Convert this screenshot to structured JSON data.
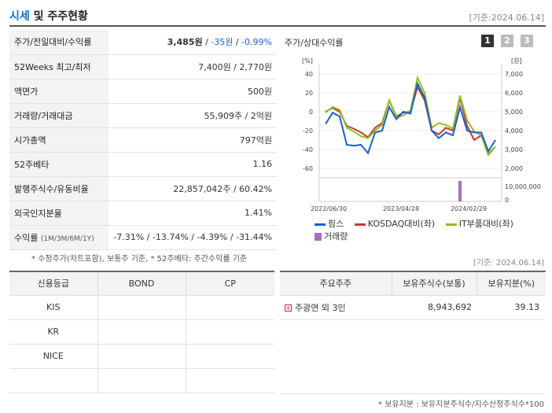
{
  "header": {
    "title_accent": "시세",
    "title_rest": " 및 주주현황",
    "asof": "[기준:2024.06.14]"
  },
  "info": {
    "price_label": "주가/전일대비/수익률",
    "price": "3,485원",
    "sep1": " / ",
    "change": "-35원",
    "sep2": " / ",
    "rate": "-0.99%",
    "w52_label": "52Weeks 최고/최저",
    "w52": "7,400원 / 2,770원",
    "par_label": "액면가",
    "par": "500원",
    "volume_label": "거래량/거래대금",
    "volume": "55,909주 / 2억원",
    "mcap_label": "시가총액",
    "mcap": "797억원",
    "beta_label": "52주베타",
    "beta": "1.16",
    "shares_label": "발행주식수/유동비율",
    "shares": "22,857,042주 / 60.42%",
    "foreign_label": "외국인지분율",
    "foreign": "1.41%",
    "ret_label": "수익률",
    "ret_label_small": "(1M/3M/6M/1Y)",
    "ret": "-7.31% / -13.74% / -4.39% / -31.44%"
  },
  "note1": "* 수정주가(차트포함), 보통주 기준, * 52주베타: 주간수익률 기준",
  "chart": {
    "title": "주가/상대수익률",
    "pages": [
      "1",
      "2",
      "3"
    ],
    "legend": [
      "핌스",
      "KOSDAQ대비(좌)",
      "IT부품대비(좌)",
      "거래량"
    ],
    "colors": {
      "price": "#1a5fd0",
      "kosdaq": "#c83a2a",
      "it": "#8fbf1f",
      "volume": "#a070d0"
    }
  },
  "chart_data": {
    "type": "line",
    "x_ticks": [
      "2022/06/30",
      "2023/04/28",
      "2024/02/29"
    ],
    "left_axis": {
      "label": "[%]",
      "ticks": [
        "40",
        "20",
        "0",
        "-20",
        "-40",
        "-60"
      ],
      "range": [
        -60,
        40
      ]
    },
    "right_axis": {
      "label": "[원]",
      "ticks": [
        "7,000",
        "6,000",
        "5,000",
        "4,000",
        "3,000",
        "2,000"
      ],
      "range": [
        2000,
        7000
      ],
      "volume_ticks": [
        "10,000,000",
        "0"
      ]
    },
    "series": [
      {
        "name": "핌스",
        "values": [
          -13,
          -1,
          -5,
          -35,
          -36,
          -35,
          -44,
          -22,
          -20,
          5,
          -8,
          0,
          -2,
          30,
          15,
          -20,
          -28,
          -22,
          -25,
          5,
          -20,
          -22,
          -22,
          -42,
          -30
        ]
      },
      {
        "name": "KOSDAQ대비(좌)",
        "values": [
          0,
          4,
          0,
          -15,
          -18,
          -22,
          -27,
          -17,
          -12,
          12,
          -5,
          -1,
          0,
          26,
          12,
          -20,
          -24,
          -17,
          -20,
          15,
          -15,
          -30,
          -25,
          -45,
          -37
        ]
      },
      {
        "name": "IT부품대비(좌)",
        "values": [
          -1,
          5,
          2,
          -17,
          -21,
          -26,
          -28,
          -20,
          -14,
          12,
          -6,
          -4,
          1,
          36,
          20,
          -17,
          -12,
          -14,
          -18,
          17,
          -9,
          -21,
          -25,
          -46,
          -37
        ]
      }
    ],
    "volume_spike_index": 19
  },
  "asof2": "[기준: 2024.06.14]",
  "credit": {
    "headers": [
      "신용등급",
      "BOND",
      "CP"
    ],
    "rows": [
      {
        "name": "KIS"
      },
      {
        "name": "KR"
      },
      {
        "name": "NICE"
      },
      {
        "name": ""
      }
    ]
  },
  "holders": {
    "headers": [
      "주요주주",
      "보유주식수(보통)",
      "보유지분(%)"
    ],
    "rows": [
      {
        "name": "주광연 외 3인",
        "shares": "8,943,692",
        "pct": "39.13"
      }
    ]
  },
  "note2": "* 보유지분 : 보유지분주식수/지수산정주식수*100"
}
